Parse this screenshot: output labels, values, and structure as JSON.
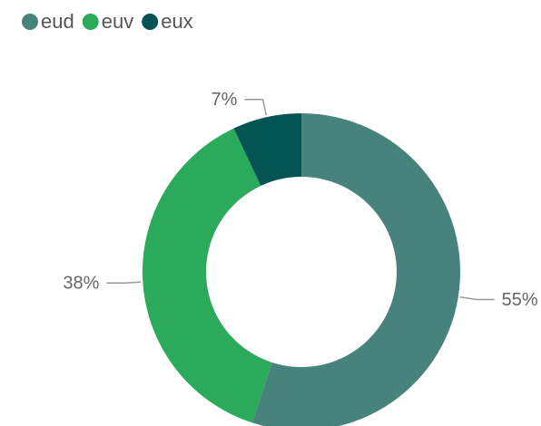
{
  "chart_data": {
    "type": "donut",
    "categories": [
      "eud",
      "euv",
      "eux"
    ],
    "values": [
      55,
      38,
      7
    ],
    "value_labels": [
      "55%",
      "38%",
      "7%"
    ],
    "colors": [
      "#47837c",
      "#2aaa5a",
      "#045454"
    ],
    "legend": "top-left"
  }
}
